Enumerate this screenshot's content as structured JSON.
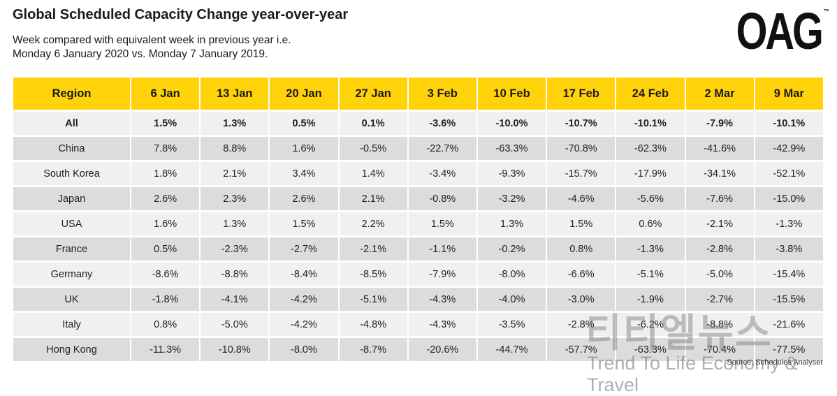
{
  "title": "Global Scheduled Capacity Change year-over-year",
  "subtitle_line1": "Week compared with equivalent week in previous year i.e.",
  "subtitle_line2": "Monday 6 January 2020 vs. Monday 7 January 2019.",
  "logo": "OAG",
  "source": "Source: Schedules Analyser",
  "watermark_korean": "티티엘뉴스",
  "watermark_english": "Trend To Life Economy & Travel",
  "colors": {
    "header_bg": "#FFD20A",
    "row_light": "#f0f0f0",
    "row_dark": "#dcdcdc"
  },
  "chart_data": {
    "type": "table",
    "title": "Global Scheduled Capacity Change year-over-year",
    "columns": [
      "Region",
      "6 Jan",
      "13 Jan",
      "20 Jan",
      "27 Jan",
      "3 Feb",
      "10 Feb",
      "17 Feb",
      "24 Feb",
      "2 Mar",
      "9 Mar"
    ],
    "rows": [
      [
        "All",
        "1.5%",
        "1.3%",
        "0.5%",
        "0.1%",
        "-3.6%",
        "-10.0%",
        "-10.7%",
        "-10.1%",
        "-7.9%",
        "-10.1%"
      ],
      [
        "China",
        "7.8%",
        "8.8%",
        "1.6%",
        "-0.5%",
        "-22.7%",
        "-63.3%",
        "-70.8%",
        "-62.3%",
        "-41.6%",
        "-42.9%"
      ],
      [
        "South Korea",
        "1.8%",
        "2.1%",
        "3.4%",
        "1.4%",
        "-3.4%",
        "-9.3%",
        "-15.7%",
        "-17.9%",
        "-34.1%",
        "-52.1%"
      ],
      [
        "Japan",
        "2.6%",
        "2.3%",
        "2.6%",
        "2.1%",
        "-0.8%",
        "-3.2%",
        "-4.6%",
        "-5.6%",
        "-7.6%",
        "-15.0%"
      ],
      [
        "USA",
        "1.6%",
        "1.3%",
        "1.5%",
        "2.2%",
        "1.5%",
        "1.3%",
        "1.5%",
        "0.6%",
        "-2.1%",
        "-1.3%"
      ],
      [
        "France",
        "0.5%",
        "-2.3%",
        "-2.7%",
        "-2.1%",
        "-1.1%",
        "-0.2%",
        "0.8%",
        "-1.3%",
        "-2.8%",
        "-3.8%"
      ],
      [
        "Germany",
        "-8.6%",
        "-8.8%",
        "-8.4%",
        "-8.5%",
        "-7.9%",
        "-8.0%",
        "-6.6%",
        "-5.1%",
        "-5.0%",
        "-15.4%"
      ],
      [
        "UK",
        "-1.8%",
        "-4.1%",
        "-4.2%",
        "-5.1%",
        "-4.3%",
        "-4.0%",
        "-3.0%",
        "-1.9%",
        "-2.7%",
        "-15.5%"
      ],
      [
        "Italy",
        "0.8%",
        "-5.0%",
        "-4.2%",
        "-4.8%",
        "-4.3%",
        "-3.5%",
        "-2.8%",
        "-6.2%",
        "-8.8%",
        "-21.6%"
      ],
      [
        "Hong Kong",
        "-11.3%",
        "-10.8%",
        "-8.0%",
        "-8.7%",
        "-20.6%",
        "-44.7%",
        "-57.7%",
        "-63.3%",
        "-70.4%",
        "-77.5%"
      ]
    ]
  }
}
